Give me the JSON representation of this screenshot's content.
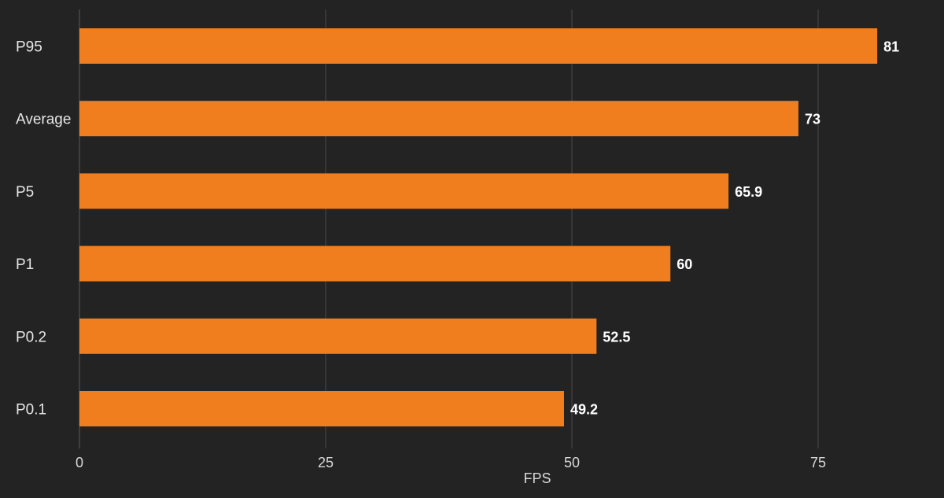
{
  "chart_data": {
    "type": "bar",
    "orientation": "horizontal",
    "categories": [
      "P95",
      "Average",
      "P5",
      "P1",
      "P0.2",
      "P0.1"
    ],
    "values": [
      81,
      73,
      65.9,
      60,
      52.5,
      49.2
    ],
    "value_labels": [
      "81",
      "73",
      "65.9",
      "60",
      "52.5",
      "49.2"
    ],
    "title": "",
    "xlabel": "FPS",
    "ylabel": "",
    "xlim": [
      0,
      85
    ],
    "xticks": [
      0,
      25,
      50,
      75
    ],
    "xtick_labels": [
      "0",
      "25",
      "50",
      "75"
    ],
    "grid": true,
    "colors": {
      "background": "#232323",
      "bar": "#F07E1F",
      "grid": "#4a4a4a",
      "text": "#e6e6e6"
    }
  }
}
